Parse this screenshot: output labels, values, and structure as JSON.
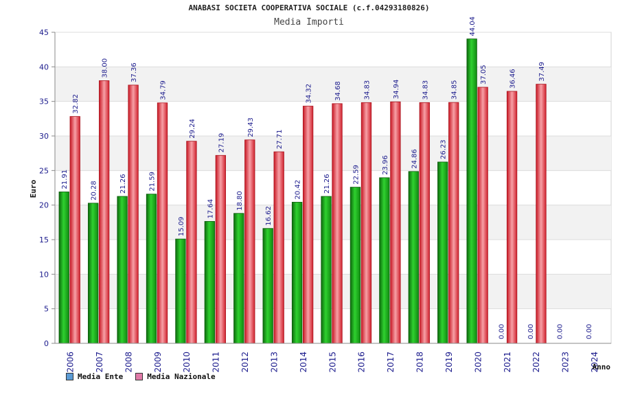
{
  "chart_data": {
    "type": "bar",
    "title": "ANABASI SOCIETA COOPERATIVA SOCIALE (c.f.04293180826)",
    "subtitle": "Media Importi",
    "xlabel": "Anno",
    "ylabel": "Euro",
    "ylim": [
      0,
      45
    ],
    "yticks": [
      0,
      5,
      10,
      15,
      20,
      25,
      30,
      35,
      40,
      45
    ],
    "grid": true,
    "legend_position": "bottom-left",
    "categories": [
      "2006",
      "2007",
      "2008",
      "2009",
      "2010",
      "2011",
      "2012",
      "2013",
      "2014",
      "2015",
      "2016",
      "2017",
      "2018",
      "2019",
      "2020",
      "2021",
      "2022",
      "2023",
      "2024"
    ],
    "series": [
      {
        "name": "Media Ente",
        "color": "#22aa22",
        "legend_color": "#5b9bd5",
        "values": [
          21.91,
          20.28,
          21.26,
          21.59,
          15.09,
          17.64,
          18.8,
          16.62,
          20.42,
          21.26,
          22.59,
          23.96,
          24.86,
          26.23,
          44.04,
          0.0,
          0.0,
          0.0,
          0.0
        ],
        "labels": [
          "21.91",
          "20.28",
          "21.26",
          "21.59",
          "15.09",
          "17.64",
          "18.80",
          "16.62",
          "20.42",
          "21.26",
          "22.59",
          "23.96",
          "24.86",
          "26.23",
          "44.04",
          "0.00",
          "0.00",
          "0.00",
          "0.00"
        ]
      },
      {
        "name": "Media Nazionale",
        "color": "#e8303a",
        "legend_color": "#e07aa8",
        "values": [
          32.82,
          38.0,
          37.36,
          34.79,
          29.24,
          27.19,
          29.43,
          27.71,
          34.32,
          34.68,
          34.83,
          34.94,
          34.83,
          34.85,
          37.05,
          36.46,
          37.49,
          null,
          null
        ],
        "labels": [
          "32.82",
          "38.00",
          "37.36",
          "34.79",
          "29.24",
          "27.19",
          "29.43",
          "27.71",
          "34.32",
          "34.68",
          "34.83",
          "34.94",
          "34.83",
          "34.85",
          "37.05",
          "36.46",
          "37.49",
          "",
          ""
        ]
      }
    ]
  }
}
